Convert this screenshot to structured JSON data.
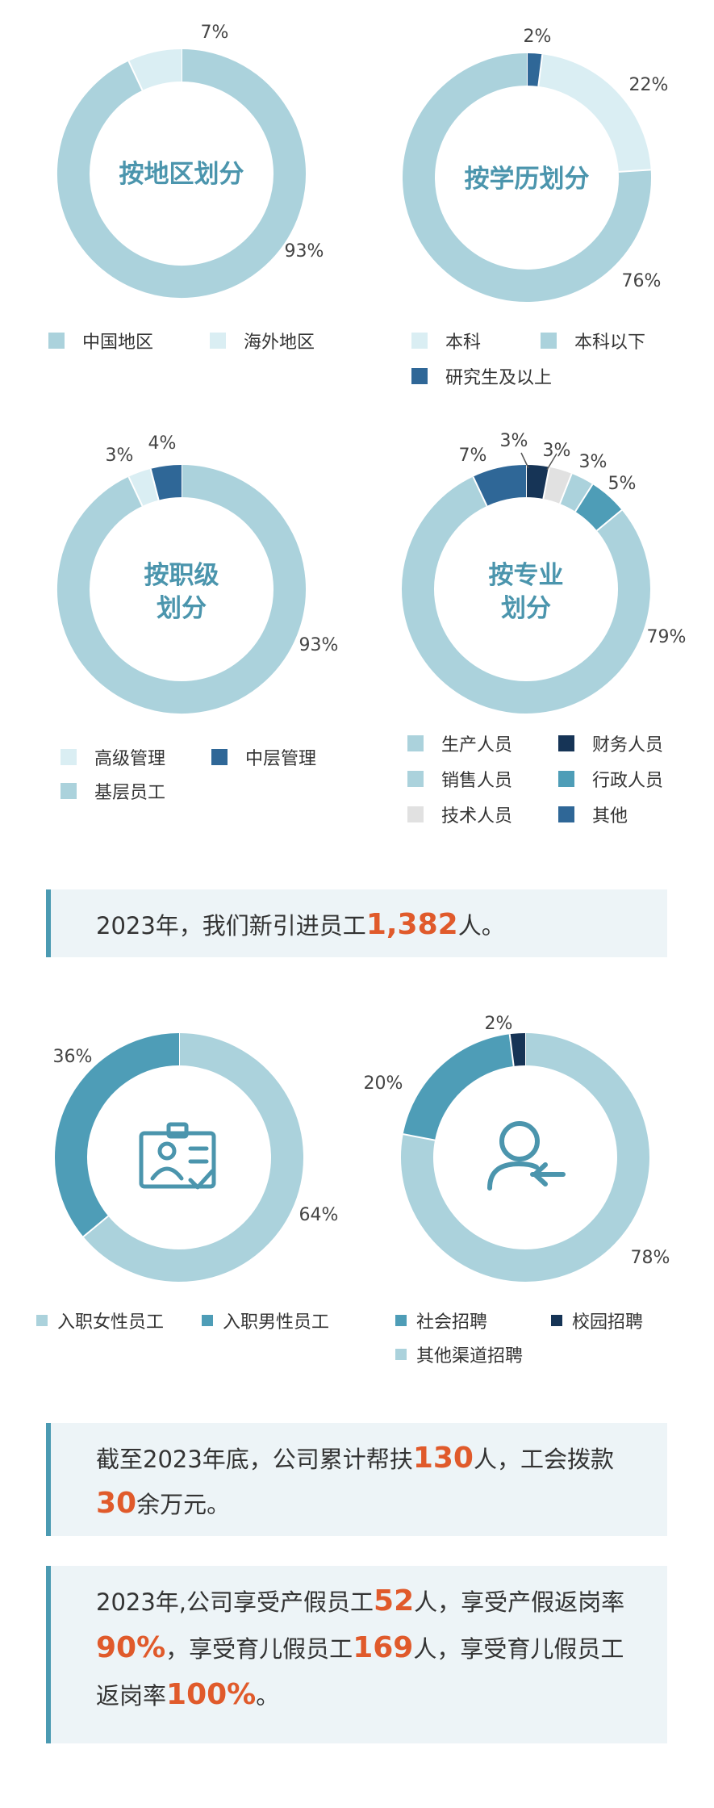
{
  "colors": {
    "light_blue": "#abd2dc",
    "pale_blue": "#daeef3",
    "dark_blue": "#2f6797",
    "navy": "#163456",
    "teal": "#4e9db7",
    "grey": "#e1e1e1",
    "accent_orange": "#e05a2b",
    "title_teal": "#4b95ad"
  },
  "chart_data": [
    {
      "type": "pie",
      "title": "按地区划分",
      "slices": [
        {
          "label": "中国地区",
          "value": 93,
          "display": "93%",
          "color": "#abd2dc"
        },
        {
          "label": "海外地区",
          "value": 7,
          "display": "7%",
          "color": "#daeef3"
        }
      ]
    },
    {
      "type": "pie",
      "title": "按学历划分",
      "slices": [
        {
          "label": "研究生及以上",
          "value": 2,
          "display": "2%",
          "color": "#2f6797"
        },
        {
          "label": "本科",
          "value": 22,
          "display": "22%",
          "color": "#daeef3"
        },
        {
          "label": "本科以下",
          "value": 76,
          "display": "76%",
          "color": "#abd2dc"
        }
      ]
    },
    {
      "type": "pie",
      "title": [
        "按职级",
        "划分"
      ],
      "slices": [
        {
          "label": "基层员工",
          "value": 93,
          "display": "93%",
          "color": "#abd2dc"
        },
        {
          "label": "高级管理",
          "value": 3,
          "display": "3%",
          "color": "#daeef3"
        },
        {
          "label": "中层管理",
          "value": 4,
          "display": "4%",
          "color": "#2f6797"
        }
      ]
    },
    {
      "type": "pie",
      "title": [
        "按专业",
        "划分"
      ],
      "slices": [
        {
          "label": "财务人员",
          "value": 3,
          "display": "3%",
          "color": "#163456"
        },
        {
          "label": "技术人员",
          "value": 3,
          "display": "3%",
          "color": "#e1e1e1"
        },
        {
          "label": "销售人员",
          "value": 3,
          "display": "3%",
          "color": "#abd2dc"
        },
        {
          "label": "行政人员",
          "value": 5,
          "display": "5%",
          "color": "#4e9db7"
        },
        {
          "label": "生产人员",
          "value": 79,
          "display": "79%",
          "color": "#abd2dc"
        },
        {
          "label": "其他",
          "value": 7,
          "display": "7%",
          "color": "#2f6797"
        }
      ]
    },
    {
      "type": "pie",
      "title": "",
      "slices": [
        {
          "label": "入职女性员工",
          "value": 64,
          "display": "64%",
          "color": "#abd2dc"
        },
        {
          "label": "入职男性员工",
          "value": 36,
          "display": "36%",
          "color": "#4e9db7"
        }
      ]
    },
    {
      "type": "pie",
      "title": "",
      "slices": [
        {
          "label": "其他渠道招聘",
          "value": 78,
          "display": "78%",
          "color": "#abd2dc"
        },
        {
          "label": "社会招聘",
          "value": 20,
          "display": "20%",
          "color": "#4e9db7"
        },
        {
          "label": "校园招聘",
          "value": 2,
          "display": "2%",
          "color": "#163456"
        }
      ]
    }
  ],
  "legends": {
    "region": [
      {
        "label": "中国地区",
        "color": "#abd2dc"
      },
      {
        "label": "海外地区",
        "color": "#daeef3"
      }
    ],
    "education": [
      {
        "label": "本科",
        "color": "#daeef3"
      },
      {
        "label": "本科以下",
        "color": "#abd2dc"
      },
      {
        "label": "研究生及以上",
        "color": "#2f6797"
      }
    ],
    "rank": [
      {
        "label": "高级管理",
        "color": "#daeef3"
      },
      {
        "label": "中层管理",
        "color": "#2f6797"
      },
      {
        "label": "基层员工",
        "color": "#abd2dc"
      }
    ],
    "major": [
      {
        "label": "生产人员",
        "color": "#abd2dc"
      },
      {
        "label": "财务人员",
        "color": "#163456"
      },
      {
        "label": "销售人员",
        "color": "#abd2dc"
      },
      {
        "label": "行政人员",
        "color": "#4e9db7"
      },
      {
        "label": "技术人员",
        "color": "#e1e1e1"
      },
      {
        "label": "其他",
        "color": "#2f6797"
      }
    ],
    "gender": [
      {
        "label": "入职女性员工",
        "color": "#abd2dc"
      },
      {
        "label": "入职男性员工",
        "color": "#4e9db7"
      }
    ],
    "recruit": [
      {
        "label": "社会招聘",
        "color": "#4e9db7"
      },
      {
        "label": "校园招聘",
        "color": "#163456"
      },
      {
        "label": "其他渠道招聘",
        "color": "#abd2dc"
      }
    ]
  },
  "icons": {
    "gender_center": "id-badge-icon",
    "recruit_center": "user-arrow-icon"
  },
  "callouts": {
    "new_hires": {
      "pre": "2023年，我们新引进员工",
      "num": "1,382",
      "post": "人。"
    },
    "assist": {
      "l1_pre": "截至2023年底，公司累计帮扶",
      "l1_num": "130",
      "l1_post": "人，工会拨款",
      "l2_num": "30",
      "l2_post": "余万元。"
    },
    "leave": {
      "l1_pre": "2023年,公司享受产假员工",
      "l1_num": "52",
      "l1_post": "人，享受产假返岗率",
      "l2_num": "90%",
      "l2_mid": "，享受育儿假员工",
      "l2_num2": "169",
      "l2_post": "人，享受育儿假员工",
      "l3_pre": "返岗率",
      "l3_num": "100%",
      "l3_post": "。"
    }
  }
}
